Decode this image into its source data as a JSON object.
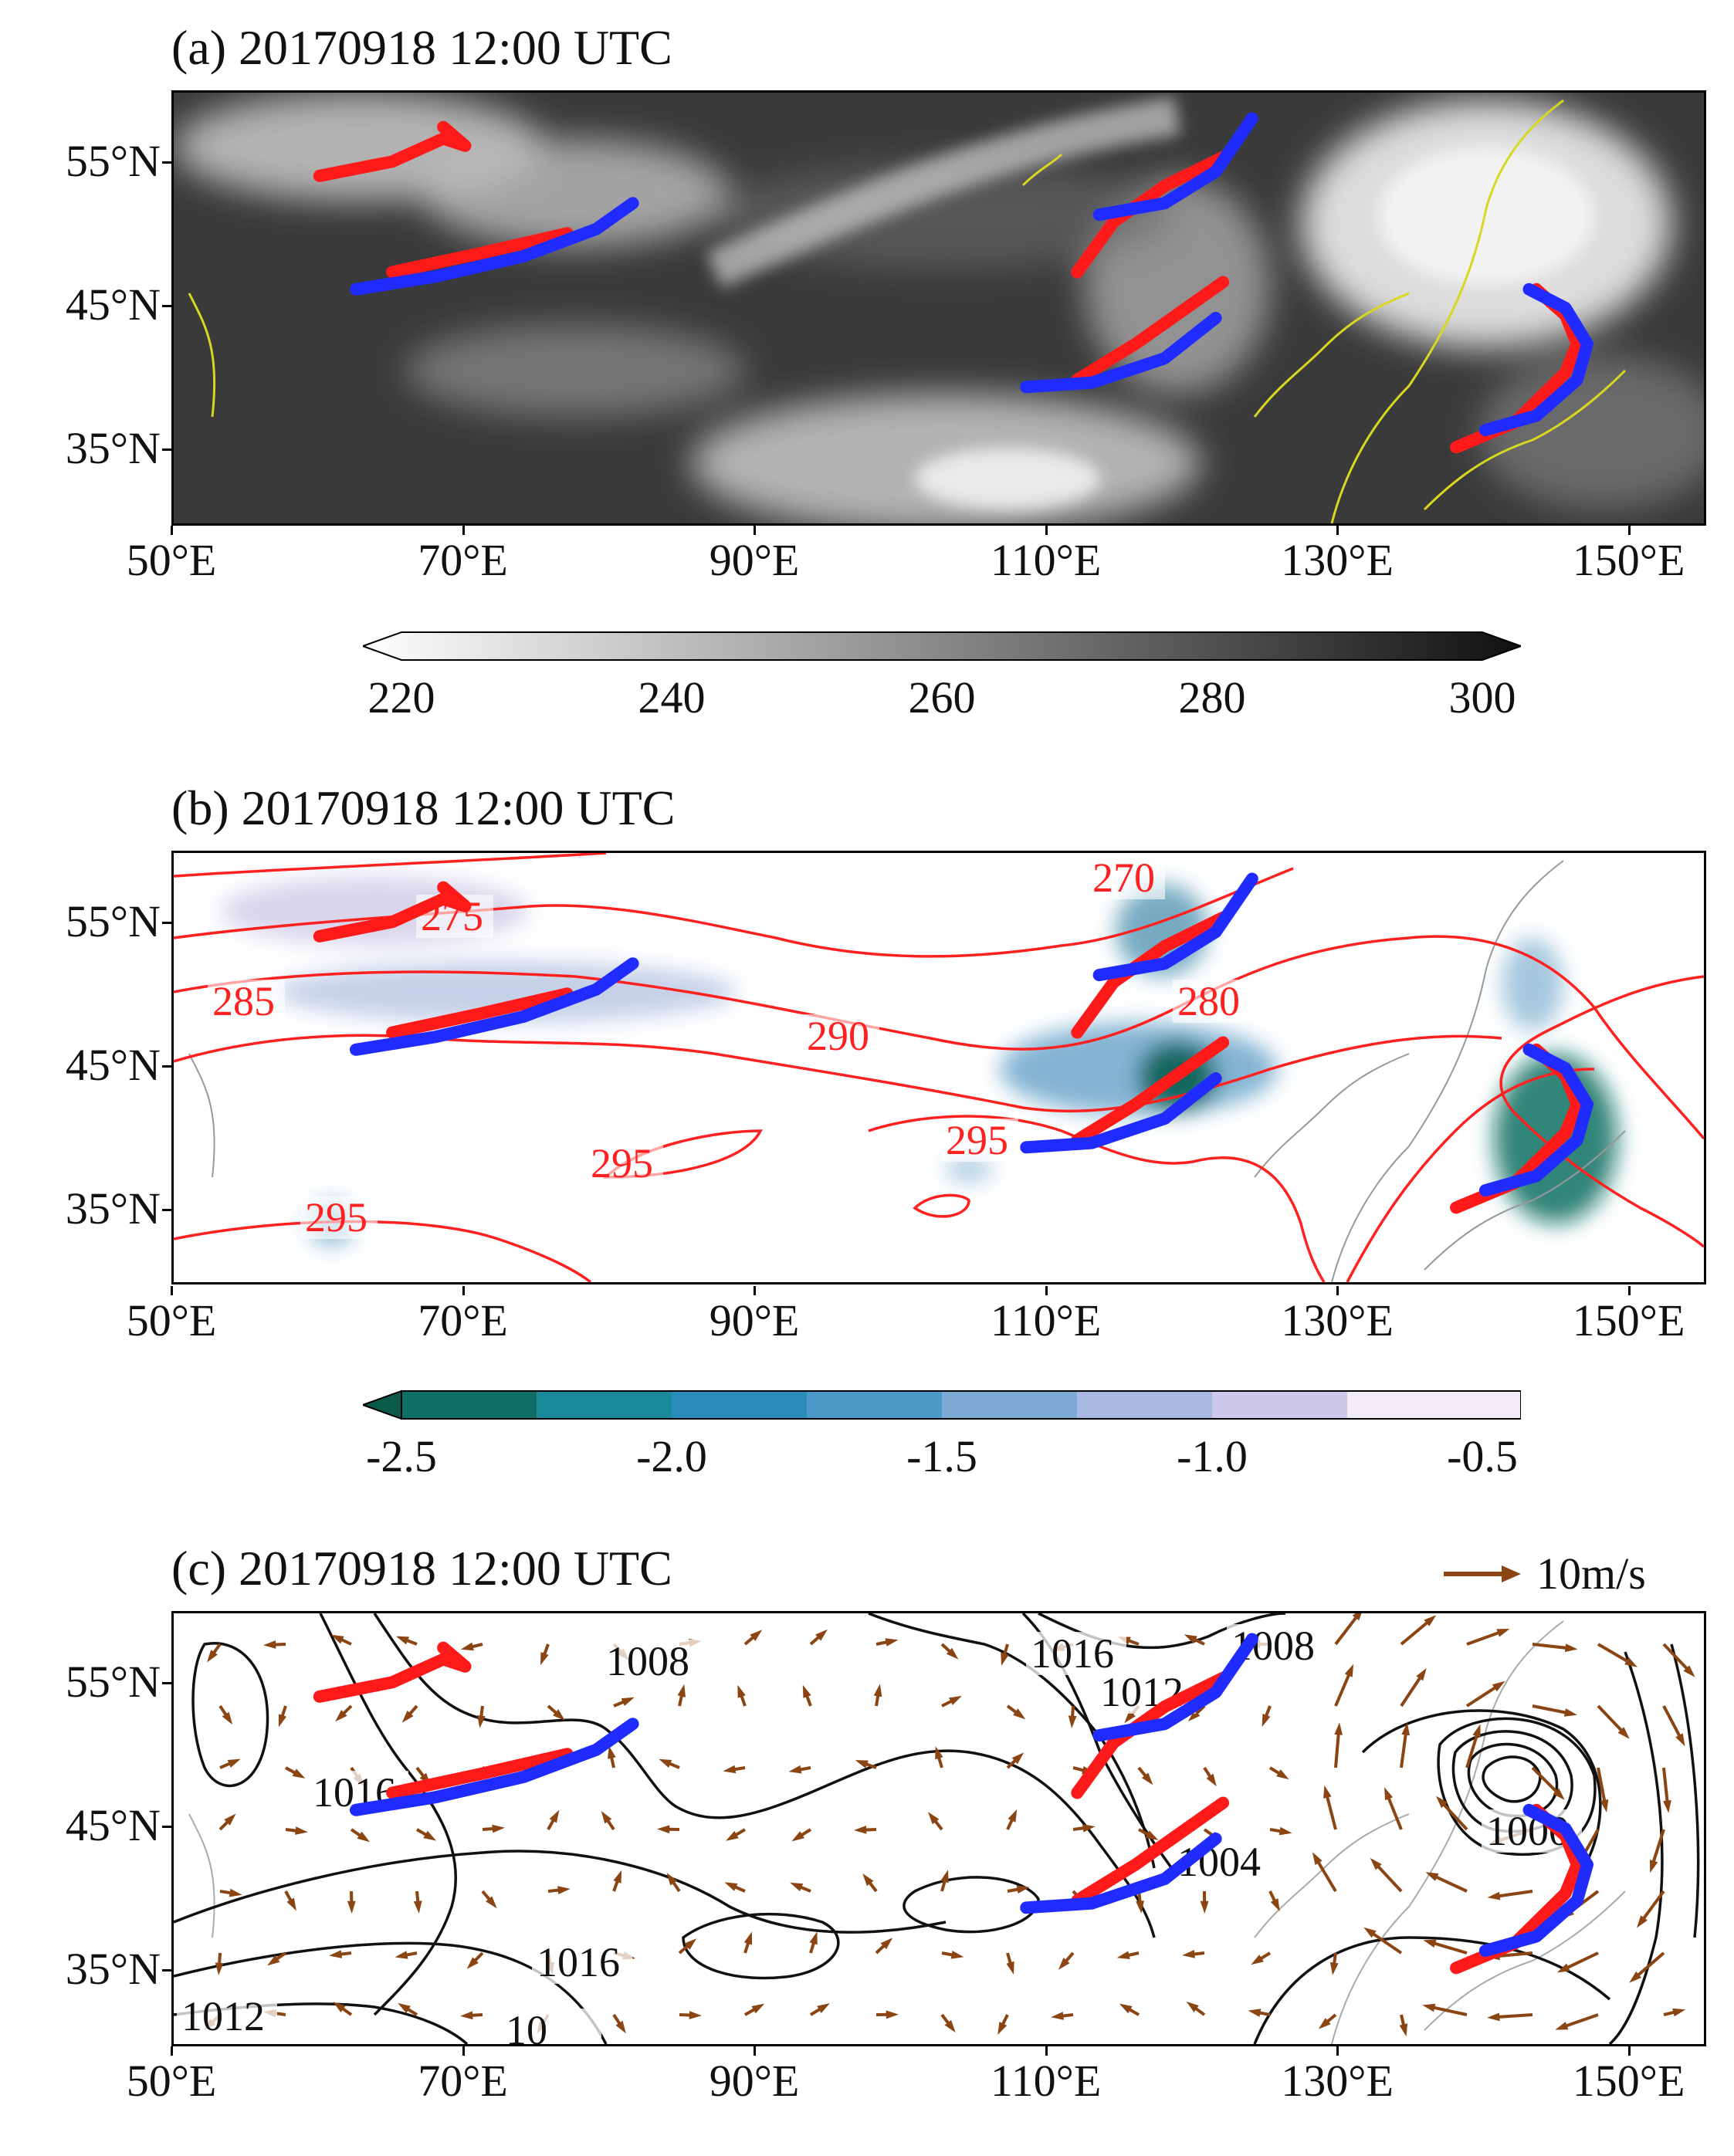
{
  "panels": [
    {
      "title": "(a) 20170918 12:00 UTC"
    },
    {
      "title": "(b) 20170918 12:00 UTC"
    },
    {
      "title": "(c) 20170918 12:00 UTC"
    }
  ],
  "lat_labels": [
    "55°N",
    "45°N",
    "35°N"
  ],
  "lon_labels": [
    "50°E",
    "70°E",
    "90°E",
    "110°E",
    "130°E",
    "150°E"
  ],
  "colorbar_a": {
    "ticks": [
      "220",
      "240",
      "260",
      "280",
      "300"
    ],
    "range": [
      220,
      300
    ]
  },
  "colorbar_b": {
    "ticks": [
      "-2.5",
      "-2.0",
      "-1.5",
      "-1.0",
      "-0.5"
    ],
    "range": [
      -2.5,
      -0.5
    ]
  },
  "contour_labels_b": [
    "275",
    "270",
    "285",
    "290",
    "280",
    "295",
    "295",
    "295"
  ],
  "contour_labels_c": [
    "1008",
    "1016",
    "1012",
    "1008",
    "1016",
    "1004",
    "1000",
    "1016",
    "1012",
    "10"
  ],
  "reference_vector": {
    "label": "10m/s"
  },
  "colors": {
    "red_front": "#ff1a1a",
    "blue_front": "#1f2bff",
    "coast_a": "#d8d820",
    "vector": "#8b4513",
    "isotherm": "#ff2020",
    "isobar": "#111111"
  },
  "fronts_lonlat": {
    "red": [
      [
        [
          60,
          54.2
        ],
        [
          65,
          55.2
        ],
        [
          68.5,
          56.8
        ],
        [
          70,
          56.3
        ],
        [
          68.5,
          57.6
        ]
      ],
      [
        [
          65,
          47.5
        ],
        [
          71,
          48.8
        ],
        [
          77,
          50.2
        ]
      ],
      [
        [
          112,
          47.5
        ],
        [
          114.5,
          51
        ],
        [
          118,
          53.5
        ],
        [
          122,
          55.5
        ]
      ],
      [
        [
          112,
          40
        ],
        [
          116,
          42.5
        ],
        [
          122,
          46.8
        ]
      ],
      [
        [
          138,
          35.3
        ],
        [
          142,
          37
        ],
        [
          145.5,
          40.5
        ],
        [
          146.3,
          42.5
        ],
        [
          145.5,
          44.5
        ],
        [
          143.5,
          46.3
        ]
      ]
    ],
    "blue": [
      [
        [
          62.5,
          46.3
        ],
        [
          68,
          47.2
        ],
        [
          74,
          48.6
        ],
        [
          79,
          50.5
        ],
        [
          81.5,
          52.3
        ]
      ],
      [
        [
          113.5,
          51.5
        ],
        [
          118,
          52.3
        ],
        [
          121.5,
          54.5
        ],
        [
          124,
          58.2
        ]
      ],
      [
        [
          108.5,
          39.5
        ],
        [
          113,
          39.8
        ],
        [
          118,
          41.5
        ],
        [
          121.5,
          44.3
        ]
      ],
      [
        [
          140,
          36.5
        ],
        [
          143.5,
          37.5
        ],
        [
          146.3,
          40
        ],
        [
          147,
          42.5
        ],
        [
          145.5,
          45
        ],
        [
          143,
          46.3
        ]
      ]
    ]
  }
}
